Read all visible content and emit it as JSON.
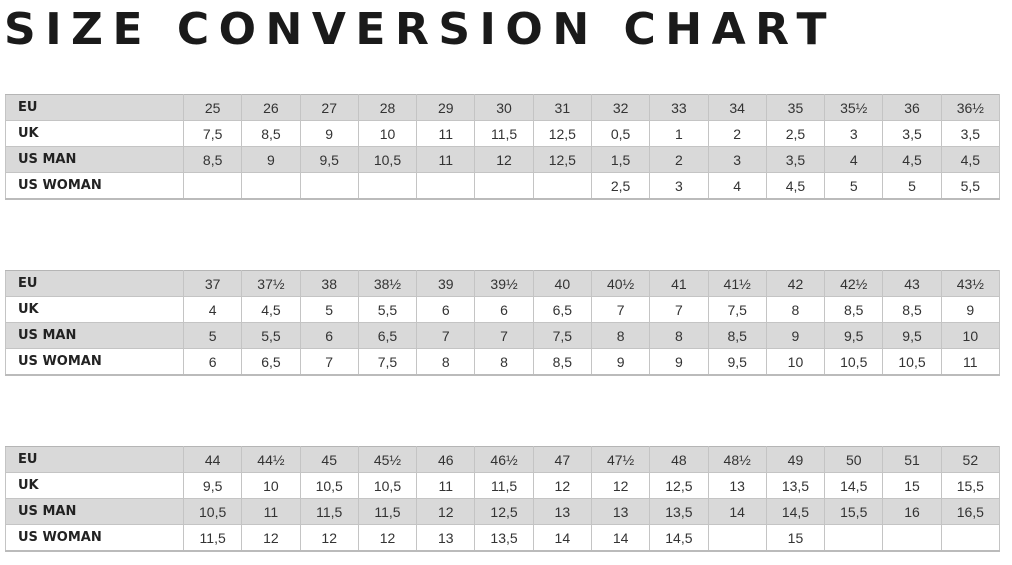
{
  "title": "SIZE CONVERSION CHART",
  "colors": {
    "shaded_row": "#d9d9d9",
    "text": "#222222"
  },
  "tables": [
    {
      "rows": [
        {
          "label": "EU",
          "values": [
            "25",
            "26",
            "27",
            "28",
            "29",
            "30",
            "31",
            "32",
            "33",
            "34",
            "35",
            "35½",
            "36",
            "36½"
          ]
        },
        {
          "label": "UK",
          "values": [
            "7,5",
            "8,5",
            "9",
            "10",
            "11",
            "11,5",
            "12,5",
            "0,5",
            "1",
            "2",
            "2,5",
            "3",
            "3,5",
            "3,5"
          ]
        },
        {
          "label": "US MAN",
          "values": [
            "8,5",
            "9",
            "9,5",
            "10,5",
            "11",
            "12",
            "12,5",
            "1,5",
            "2",
            "3",
            "3,5",
            "4",
            "4,5",
            "4,5"
          ]
        },
        {
          "label": "US WOMAN",
          "values": [
            "",
            "",
            "",
            "",
            "",
            "",
            "",
            "2,5",
            "3",
            "4",
            "4,5",
            "5",
            "5",
            "5,5"
          ]
        }
      ]
    },
    {
      "rows": [
        {
          "label": "EU",
          "values": [
            "37",
            "37½",
            "38",
            "38½",
            "39",
            "39½",
            "40",
            "40½",
            "41",
            "41½",
            "42",
            "42½",
            "43",
            "43½"
          ]
        },
        {
          "label": "UK",
          "values": [
            "4",
            "4,5",
            "5",
            "5,5",
            "6",
            "6",
            "6,5",
            "7",
            "7",
            "7,5",
            "8",
            "8,5",
            "8,5",
            "9"
          ]
        },
        {
          "label": "US MAN",
          "values": [
            "5",
            "5,5",
            "6",
            "6,5",
            "7",
            "7",
            "7,5",
            "8",
            "8",
            "8,5",
            "9",
            "9,5",
            "9,5",
            "10"
          ]
        },
        {
          "label": "US WOMAN",
          "values": [
            "6",
            "6,5",
            "7",
            "7,5",
            "8",
            "8",
            "8,5",
            "9",
            "9",
            "9,5",
            "10",
            "10,5",
            "10,5",
            "11"
          ]
        }
      ]
    },
    {
      "rows": [
        {
          "label": "EU",
          "values": [
            "44",
            "44½",
            "45",
            "45½",
            "46",
            "46½",
            "47",
            "47½",
            "48",
            "48½",
            "49",
            "50",
            "51",
            "52"
          ]
        },
        {
          "label": "UK",
          "values": [
            "9,5",
            "10",
            "10,5",
            "10,5",
            "11",
            "11,5",
            "12",
            "12",
            "12,5",
            "13",
            "13,5",
            "14,5",
            "15",
            "15,5"
          ]
        },
        {
          "label": "US MAN",
          "values": [
            "10,5",
            "11",
            "11,5",
            "11,5",
            "12",
            "12,5",
            "13",
            "13",
            "13,5",
            "14",
            "14,5",
            "15,5",
            "16",
            "16,5"
          ]
        },
        {
          "label": "US WOMAN",
          "values": [
            "11,5",
            "12",
            "12",
            "12",
            "13",
            "13,5",
            "14",
            "14",
            "14,5",
            "",
            "15",
            "",
            "",
            ""
          ]
        }
      ]
    }
  ]
}
